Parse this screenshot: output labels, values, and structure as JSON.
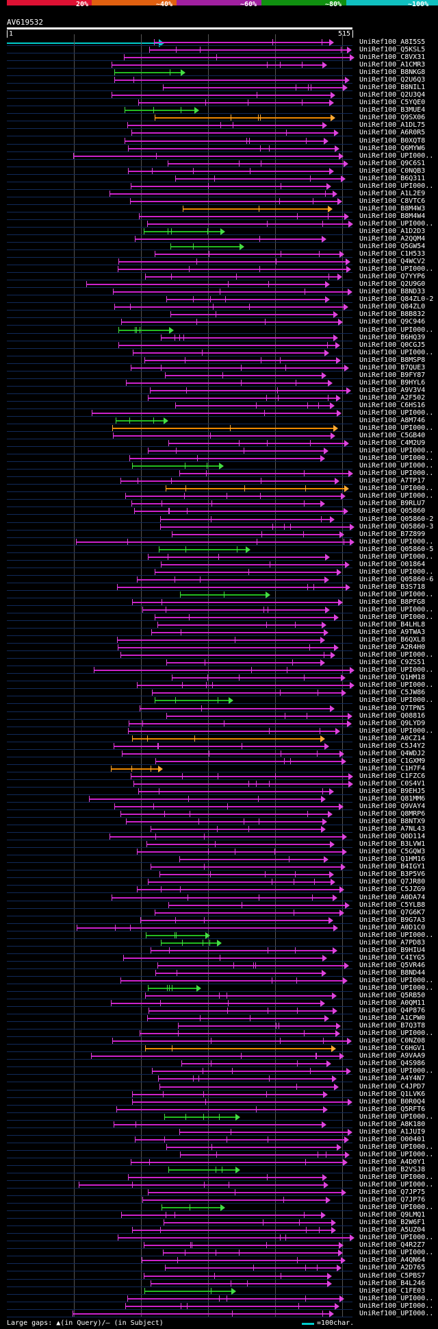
{
  "legend": {
    "labels": [
      "20%",
      "~40%",
      "~60%",
      "~80%",
      "~100%"
    ],
    "colors": [
      "#dd1133",
      "#e06010",
      "#a020a0",
      "#109010",
      "#10c0c0"
    ]
  },
  "query": {
    "id": "AV619532",
    "start": "1",
    "end": "515"
  },
  "footer": {
    "gaps_text": "Large gaps: ▲(in Query)/– (in Subject)",
    "scale_text": "=100char."
  },
  "hits": [
    "UniRef100_A8I5S5",
    "UniRef100_Q5KSL5",
    "UniRef100_C8VX31",
    "UniRef100_A1CMR3",
    "UniRef100_B8NKG8",
    "UniRef100_Q2U6Q3",
    "UniRef100_B8NIL1",
    "UniRef100_Q2U3Q4",
    "UniRef100_C5YQE0",
    "UniRef100_B3MUE4",
    "UniRef100_Q9SX06",
    "UniRef100_A1DL75",
    "UniRef100_A6R0R5",
    "UniRef100_B0XQT8",
    "UniRef100_Q6MYW6",
    "UniRef100_UPI000..",
    "UniRef100_Q9C6S1",
    "UniRef100_C0NQB3",
    "UniRef100_B6Q311",
    "UniRef100_UPI000..",
    "UniRef100_A1L2E9",
    "UniRef100_C8VTC6",
    "UniRef100_B8M4W3",
    "UniRef100_B8M4W4",
    "UniRef100_UPI000..",
    "UniRef100_A1D2D3",
    "UniRef100_A2QQM4",
    "UniRef100_Q5GW54",
    "UniRef100_C1H533",
    "UniRef100_Q4WCV2",
    "UniRef100_UPI000..",
    "UniRef100_Q7YYP6",
    "UniRef100_Q2U9G0",
    "UniRef100_B8ND33",
    "UniRef100_Q84ZL0-2",
    "UniRef100_Q84ZL0",
    "UniRef100_B8B832",
    "UniRef100_Q9C946",
    "UniRef100_UPI000..",
    "UniRef100_B6HQ39",
    "UniRef100_Q0CGJ5",
    "UniRef100_UPI000..",
    "UniRef100_B8MSP8",
    "UniRef100_B7QUE3",
    "UniRef100_B9FY87",
    "UniRef100_B9HYL6",
    "UniRef100_A9V3V4",
    "UniRef100_A2F502",
    "UniRef100_C6HS16",
    "UniRef100_UPI000..",
    "UniRef100_A8M746",
    "UniRef100_UPI000..",
    "UniRef100_C5GB40",
    "UniRef100_C4M2U9",
    "UniRef100_UPI000..",
    "UniRef100_UPI000..",
    "UniRef100_UPI000..",
    "UniRef100_UPI000..",
    "UniRef100_A7TP17",
    "UniRef100_UPI000..",
    "UniRef100_UPI000..",
    "UniRef100_B9RLU7",
    "UniRef100_Q05860",
    "UniRef100_Q05860-2",
    "UniRef100_Q05860-3",
    "UniRef100_B7Z899",
    "UniRef100_UPI000..",
    "UniRef100_Q05860-5",
    "UniRef100_UPI000..",
    "UniRef100_O01864",
    "UniRef100_UPI000..",
    "UniRef100_Q05860-6",
    "UniRef100_B3S718",
    "UniRef100_UPI000..",
    "UniRef100_B8PFG8",
    "UniRef100_UPI000..",
    "UniRef100_UPI000..",
    "UniRef100_B4LHL8",
    "UniRef100_A9TWA3",
    "UniRef100_B6QXL8",
    "UniRef100_A2R4H0",
    "UniRef100_UPI000..",
    "UniRef100_C9ZS51",
    "UniRef100_UPI000..",
    "UniRef100_Q1HM18",
    "UniRef100_UPI000..",
    "UniRef100_C5JW86",
    "UniRef100_UPI000..",
    "UniRef100_Q7TPN5",
    "UniRef100_Q08816",
    "UniRef100_Q9LYD9",
    "UniRef100_UPI000..",
    "UniRef100_A0CZ14",
    "UniRef100_C5J4Y2",
    "UniRef100_Q4WDJ2",
    "UniRef100_C1GXM9",
    "UniRef100_C1H7F4",
    "UniRef100_C1FZC6",
    "UniRef100_C0S4V1",
    "UniRef100_B9EHJ5",
    "UniRef100_Q81MM6",
    "UniRef100_Q9VAY4",
    "UniRef100_Q8MRP6",
    "UniRef100_B8NTX9",
    "UniRef100_A7NL43",
    "UniRef100_Q0D114",
    "UniRef100_B3LVW1",
    "UniRef100_C5GQW3",
    "UniRef100_Q1HM16",
    "UniRef100_B4IGY1",
    "UniRef100_B3P5V6",
    "UniRef100_Q7JR80",
    "UniRef100_C5JZG9",
    "UniRef100_A0DA74",
    "UniRef100_C5YLB8",
    "UniRef100_Q7G6K7",
    "UniRef100_B9G7A3",
    "UniRef100_A0D1C0",
    "UniRef100_UPI000..",
    "UniRef100_A7PD83",
    "UniRef100_B9HIU4",
    "UniRef100_C4IYG5",
    "UniRef100_Q5VR46",
    "UniRef100_B8ND44",
    "UniRef100_UPI000..",
    "UniRef100_UPI000..",
    "UniRef100_Q5RB50",
    "UniRef100_A0QM11",
    "UniRef100_Q4P876",
    "UniRef100_A1CPW0",
    "UniRef100_B7Q3T8",
    "UniRef100_UPI000..",
    "UniRef100_C0NZ08",
    "UniRef100_C6HGV1",
    "UniRef100_A9VAA9",
    "UniRef100_Q4S986",
    "UniRef100_UPI000..",
    "UniRef100_A4Y4N7",
    "UniRef100_C4JPD7",
    "UniRef100_Q1LVK6",
    "UniRef100_B0R0Q4",
    "UniRef100_Q5RFT6",
    "UniRef100_UPI000..",
    "UniRef100_A8K180",
    "UniRef100_A1JUI9",
    "UniRef100_O00401",
    "UniRef100_UPI000..",
    "UniRef100_UPI000..",
    "UniRef100_A4D0Y1",
    "UniRef100_B2VSJ8",
    "UniRef100_UPI000..",
    "UniRef100_UPI000..",
    "UniRef100_Q7JP75",
    "UniRef100_Q7JP76",
    "UniRef100_UPI000..",
    "UniRef100_Q9LMQ1",
    "UniRef100_B2W6F1",
    "UniRef100_A5UZ04",
    "UniRef100_UPI000..",
    "UniRef100_Q4R2Z7",
    "UniRef100_UPI000..",
    "UniRef100_A4QN64",
    "UniRef100_A2D765",
    "UniRef100_C5PBS7",
    "UniRef100_B4L246",
    "UniRef100_C1FE03",
    "UniRef100_UPI000..",
    "UniRef100_UPI000..",
    "UniRef100_UPI000.."
  ]
}
